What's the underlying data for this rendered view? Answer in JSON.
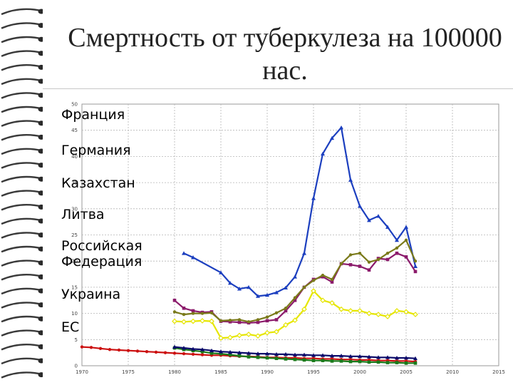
{
  "slide": {
    "title": "Смертность от туберкулеза на 100000 нас."
  },
  "chart_data": {
    "type": "line",
    "title": "",
    "xlabel": "",
    "ylabel": "",
    "xlim": [
      1970,
      2015
    ],
    "ylim": [
      0,
      50
    ],
    "x_ticks": [
      1970,
      1975,
      1980,
      1985,
      1990,
      1995,
      2000,
      2005,
      2010,
      2015
    ],
    "y_ticks": [
      0,
      5,
      10,
      15,
      20,
      25,
      30,
      35,
      40,
      45,
      50
    ],
    "grid": true,
    "legend_position": "left",
    "series": [
      {
        "name": "Франция",
        "color": "#cc1111",
        "x": [
          1970,
          1971,
          1972,
          1973,
          1974,
          1975,
          1976,
          1977,
          1978,
          1979,
          1980,
          1981,
          1982,
          1983,
          1984,
          1985,
          1986,
          1987,
          1988,
          1989,
          1990,
          1991,
          1992,
          1993,
          1994,
          1995,
          1996,
          1997,
          1998,
          1999,
          2000,
          2001,
          2002,
          2003,
          2004,
          2005,
          2006
        ],
        "y": [
          3.6,
          3.5,
          3.3,
          3.1,
          3.0,
          2.9,
          2.8,
          2.7,
          2.6,
          2.5,
          2.4,
          2.3,
          2.2,
          2.1,
          2.0,
          2.0,
          1.9,
          1.8,
          1.8,
          1.7,
          1.6,
          1.6,
          1.5,
          1.5,
          1.4,
          1.4,
          1.3,
          1.3,
          1.2,
          1.2,
          1.1,
          1.1,
          1.0,
          1.0,
          0.9,
          0.9,
          0.8
        ]
      },
      {
        "name": "Германия",
        "color": "#1a7a1a",
        "x": [
          1980,
          1981,
          1982,
          1983,
          1984,
          1985,
          1986,
          1987,
          1988,
          1989,
          1990,
          1991,
          1992,
          1993,
          1994,
          1995,
          1996,
          1997,
          1998,
          1999,
          2000,
          2001,
          2002,
          2003,
          2004,
          2005,
          2006
        ],
        "y": [
          3.4,
          3.1,
          2.9,
          2.7,
          2.4,
          2.3,
          2.1,
          1.9,
          1.7,
          1.6,
          1.5,
          1.4,
          1.3,
          1.2,
          1.1,
          1.0,
          1.0,
          0.9,
          0.9,
          0.8,
          0.8,
          0.7,
          0.7,
          0.6,
          0.6,
          0.5,
          0.5
        ]
      },
      {
        "name": "Казахстан",
        "color": "#1c3fbf",
        "x": [
          1981,
          1982,
          1985,
          1986,
          1987,
          1988,
          1989,
          1990,
          1991,
          1992,
          1993,
          1994,
          1995,
          1996,
          1997,
          1998,
          1999,
          2000,
          2001,
          2002,
          2003,
          2004,
          2005,
          2006
        ],
        "y": [
          21.5,
          20.7,
          17.8,
          15.8,
          14.7,
          15.0,
          13.3,
          13.5,
          14.0,
          14.9,
          17.0,
          21.5,
          32.0,
          40.5,
          43.5,
          45.5,
          35.5,
          30.5,
          27.8,
          28.6,
          26.5,
          24.0,
          26.5,
          19.0
        ]
      },
      {
        "name": "Литва",
        "color": "#e6e600",
        "x": [
          1980,
          1981,
          1982,
          1983,
          1984,
          1985,
          1986,
          1987,
          1988,
          1989,
          1990,
          1991,
          1992,
          1993,
          1994,
          1995,
          1996,
          1997,
          1998,
          1999,
          2000,
          2001,
          2002,
          2003,
          2004,
          2005,
          2006
        ],
        "y": [
          8.5,
          8.4,
          8.5,
          8.6,
          8.5,
          5.3,
          5.4,
          5.8,
          6.0,
          5.7,
          6.3,
          6.5,
          7.8,
          8.7,
          10.8,
          14.3,
          12.5,
          12.0,
          10.8,
          10.5,
          10.5,
          10.0,
          9.8,
          9.4,
          10.5,
          10.3,
          9.8
        ]
      },
      {
        "name": "Российская Федерация",
        "color": "#8b1a6b",
        "x": [
          1980,
          1981,
          1982,
          1983,
          1984,
          1985,
          1986,
          1987,
          1988,
          1989,
          1990,
          1991,
          1992,
          1993,
          1994,
          1995,
          1996,
          1997,
          1998,
          1999,
          2000,
          2001,
          2002,
          2003,
          2004,
          2005,
          2006
        ],
        "y": [
          12.5,
          11.0,
          10.5,
          10.2,
          10.3,
          8.5,
          8.4,
          8.3,
          8.2,
          8.3,
          8.6,
          8.8,
          10.5,
          12.5,
          15.0,
          16.5,
          17.0,
          16.0,
          19.5,
          19.3,
          19.0,
          18.3,
          20.5,
          20.3,
          21.5,
          20.8,
          18.0
        ]
      },
      {
        "name": "Украина",
        "color": "#7a7a1a",
        "x": [
          1980,
          1981,
          1982,
          1983,
          1984,
          1985,
          1986,
          1987,
          1988,
          1989,
          1990,
          1991,
          1992,
          1993,
          1994,
          1995,
          1996,
          1997,
          1998,
          1999,
          2000,
          2001,
          2002,
          2003,
          2004,
          2005,
          2006
        ],
        "y": [
          10.3,
          9.8,
          10.0,
          10.0,
          10.1,
          8.6,
          8.7,
          8.8,
          8.4,
          8.8,
          9.3,
          10.1,
          11.0,
          13.0,
          15.0,
          16.3,
          17.3,
          16.5,
          19.5,
          21.2,
          21.5,
          19.8,
          20.3,
          21.5,
          22.5,
          24.0,
          20.0
        ]
      },
      {
        "name": "ЕС",
        "color": "#0a0a6a",
        "x": [
          1980,
          1981,
          1982,
          1983,
          1984,
          1985,
          1986,
          1987,
          1988,
          1989,
          1990,
          1991,
          1992,
          1993,
          1994,
          1995,
          1996,
          1997,
          1998,
          1999,
          2000,
          2001,
          2002,
          2003,
          2004,
          2005,
          2006
        ],
        "y": [
          3.6,
          3.4,
          3.2,
          3.1,
          2.9,
          2.7,
          2.6,
          2.5,
          2.4,
          2.3,
          2.3,
          2.2,
          2.2,
          2.1,
          2.1,
          2.0,
          2.0,
          1.9,
          1.9,
          1.8,
          1.8,
          1.7,
          1.6,
          1.6,
          1.5,
          1.5,
          1.4
        ]
      }
    ]
  }
}
